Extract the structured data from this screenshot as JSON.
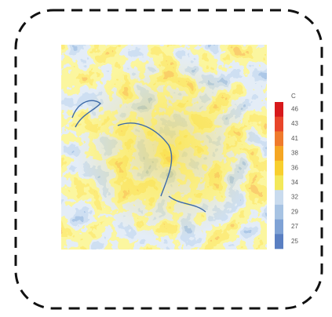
{
  "legend": {
    "unit": "C",
    "labels": [
      "46",
      "43",
      "41",
      "38",
      "36",
      "34",
      "32",
      "29",
      "27",
      "25"
    ],
    "colors": [
      "#d7191c",
      "#e8452a",
      "#ef7a2c",
      "#f5a623",
      "#f8cf2e",
      "#f3e85a",
      "#c9dbee",
      "#a7c3e3",
      "#7fa2d5",
      "#5a7fc2"
    ]
  }
}
